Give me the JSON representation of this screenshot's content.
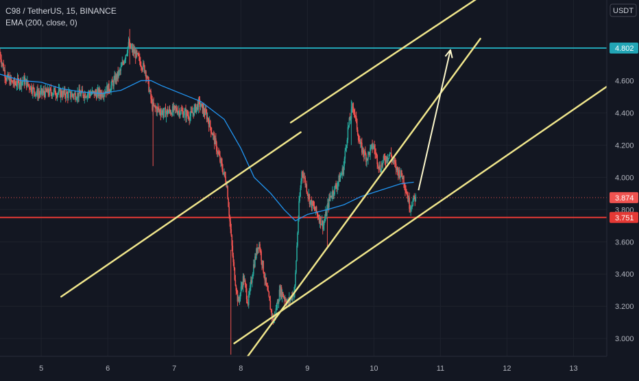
{
  "legend": {
    "symbol_line": "C98 / TetherUS, 15, BINANCE",
    "indicator_line": "EMA (200, close, 0)"
  },
  "currency_badge": "USDT",
  "colors": {
    "background": "#131722",
    "up": "#26a69a",
    "down": "#ef5350",
    "ema": "#2196f3",
    "channel": "#f0e68c",
    "resistance": "#22a5b5",
    "support": "#e53935",
    "current_price": "#ef5350",
    "arrow": "#fffacd"
  },
  "chart_data": {
    "type": "candlestick",
    "title": "C98 / TetherUS, 15, BINANCE",
    "x_ticks": [
      "5",
      "6",
      "7",
      "8",
      "9",
      "10",
      "11",
      "12",
      "13"
    ],
    "x_tick_values": [
      5,
      6,
      7,
      8,
      9,
      10,
      11,
      12,
      13
    ],
    "xlim": [
      4.38,
      13.5
    ],
    "y_ticks": [
      "3.000",
      "3.200",
      "3.400",
      "3.600",
      "3.800",
      "4.000",
      "4.200",
      "4.400",
      "4.600"
    ],
    "y_tick_values": [
      3.0,
      3.2,
      3.4,
      3.6,
      3.8,
      4.0,
      4.2,
      4.4,
      4.6
    ],
    "ylim": [
      2.89,
      5.1
    ],
    "price_path": [
      [
        4.38,
        4.78
      ],
      [
        4.48,
        4.62
      ],
      [
        4.6,
        4.58
      ],
      [
        4.75,
        4.6
      ],
      [
        4.95,
        4.52
      ],
      [
        5.2,
        4.53
      ],
      [
        5.45,
        4.51
      ],
      [
        5.7,
        4.52
      ],
      [
        5.9,
        4.52
      ],
      [
        6.05,
        4.56
      ],
      [
        6.2,
        4.66
      ],
      [
        6.32,
        4.82
      ],
      [
        6.45,
        4.75
      ],
      [
        6.58,
        4.66
      ],
      [
        6.68,
        4.44
      ],
      [
        6.85,
        4.4
      ],
      [
        7.05,
        4.42
      ],
      [
        7.25,
        4.38
      ],
      [
        7.38,
        4.46
      ],
      [
        7.5,
        4.38
      ],
      [
        7.6,
        4.25
      ],
      [
        7.7,
        4.1
      ],
      [
        7.8,
        3.96
      ],
      [
        7.85,
        3.7
      ],
      [
        7.9,
        3.45
      ],
      [
        7.97,
        3.22
      ],
      [
        8.05,
        3.38
      ],
      [
        8.12,
        3.22
      ],
      [
        8.2,
        3.45
      ],
      [
        8.28,
        3.6
      ],
      [
        8.38,
        3.35
      ],
      [
        8.5,
        3.1
      ],
      [
        8.6,
        3.3
      ],
      [
        8.72,
        3.22
      ],
      [
        8.82,
        3.3
      ],
      [
        8.88,
        3.8
      ],
      [
        8.93,
        4.05
      ],
      [
        9.05,
        3.85
      ],
      [
        9.15,
        3.78
      ],
      [
        9.25,
        3.7
      ],
      [
        9.35,
        3.88
      ],
      [
        9.45,
        3.95
      ],
      [
        9.55,
        4.05
      ],
      [
        9.62,
        4.3
      ],
      [
        9.7,
        4.45
      ],
      [
        9.8,
        4.2
      ],
      [
        9.9,
        4.12
      ],
      [
        10.0,
        4.2
      ],
      [
        10.1,
        4.05
      ],
      [
        10.15,
        4.1
      ],
      [
        10.25,
        4.15
      ],
      [
        10.35,
        4.05
      ],
      [
        10.45,
        4.0
      ],
      [
        10.55,
        3.82
      ],
      [
        10.63,
        3.874
      ]
    ],
    "series": [
      {
        "name": "EMA (200, close, 0)",
        "points": [
          [
            4.38,
            4.64
          ],
          [
            4.7,
            4.6
          ],
          [
            5.0,
            4.59
          ],
          [
            5.3,
            4.55
          ],
          [
            5.6,
            4.53
          ],
          [
            5.9,
            4.52
          ],
          [
            6.2,
            4.54
          ],
          [
            6.5,
            4.6
          ],
          [
            6.65,
            4.6
          ],
          [
            6.8,
            4.57
          ],
          [
            7.1,
            4.52
          ],
          [
            7.4,
            4.47
          ],
          [
            7.75,
            4.36
          ],
          [
            8.0,
            4.18
          ],
          [
            8.2,
            4.0
          ],
          [
            8.45,
            3.9
          ],
          [
            8.65,
            3.8
          ],
          [
            8.82,
            3.73
          ],
          [
            9.0,
            3.77
          ],
          [
            9.3,
            3.8
          ],
          [
            9.55,
            3.83
          ],
          [
            9.8,
            3.88
          ],
          [
            10.1,
            3.92
          ],
          [
            10.4,
            3.96
          ],
          [
            10.6,
            3.97
          ]
        ]
      }
    ],
    "horizontal_levels": [
      4.802,
      3.751
    ],
    "current_price": 3.874,
    "price_labels": [
      "4.802",
      "3.874",
      "3.751"
    ],
    "trendlines": [
      {
        "from": [
          5.3,
          3.26
        ],
        "to": [
          8.9,
          4.28
        ]
      },
      {
        "from": [
          8.05,
          2.86
        ],
        "to": [
          11.6,
          4.86
        ]
      },
      {
        "from": [
          8.75,
          4.34
        ],
        "to": [
          14.25,
          5.85
        ]
      },
      {
        "from": [
          7.9,
          2.97
        ],
        "to": [
          14.72,
          4.91
        ]
      }
    ],
    "arrow": {
      "from": [
        10.67,
        3.92
      ],
      "to": [
        11.15,
        4.79
      ]
    }
  }
}
